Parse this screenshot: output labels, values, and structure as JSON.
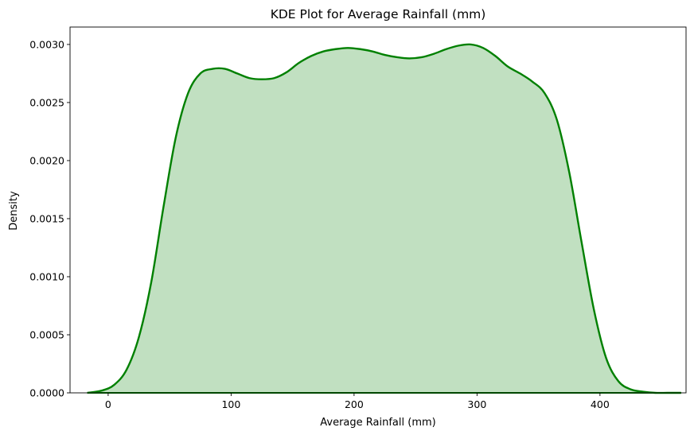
{
  "chart_data": {
    "type": "area",
    "title": "KDE Plot for Average Rainfall (mm)",
    "xlabel": "Average Rainfall (mm)",
    "ylabel": "Density",
    "xlim": [
      -31,
      470
    ],
    "ylim": [
      0,
      0.00315
    ],
    "x_ticks": [
      0,
      100,
      200,
      300,
      400
    ],
    "x_tick_labels": [
      "0",
      "100",
      "200",
      "300",
      "400"
    ],
    "y_ticks": [
      0,
      0.0005,
      0.001,
      0.0015,
      0.002,
      0.0025,
      0.003
    ],
    "y_tick_labels": [
      "0.0000",
      "0.0005",
      "0.0010",
      "0.0015",
      "0.0020",
      "0.0025",
      "0.0030"
    ],
    "grid": false,
    "line_color": "#008000",
    "fill_color": "#c1e0c1",
    "x": [
      -17,
      -5,
      5,
      15,
      25,
      35,
      45,
      55,
      65,
      75,
      85,
      95,
      105,
      115,
      125,
      135,
      145,
      155,
      165,
      175,
      185,
      195,
      205,
      215,
      225,
      235,
      245,
      255,
      265,
      275,
      285,
      295,
      305,
      315,
      325,
      335,
      345,
      355,
      365,
      375,
      385,
      395,
      405,
      415,
      425,
      435,
      445,
      455,
      466
    ],
    "y": [
      0.0,
      2e-05,
      7e-05,
      0.0002,
      0.00048,
      0.00095,
      0.0016,
      0.0022,
      0.00258,
      0.00275,
      0.00279,
      0.00279,
      0.00275,
      0.00271,
      0.0027,
      0.00271,
      0.00276,
      0.00284,
      0.0029,
      0.00294,
      0.00296,
      0.00297,
      0.00296,
      0.00294,
      0.00291,
      0.00289,
      0.00288,
      0.00289,
      0.00292,
      0.00296,
      0.00299,
      0.003,
      0.00297,
      0.0029,
      0.00281,
      0.00275,
      0.00268,
      0.00258,
      0.00235,
      0.0019,
      0.0013,
      0.00072,
      0.0003,
      0.0001,
      3e-05,
      1e-05,
      0.0,
      0.0,
      0.0
    ]
  }
}
